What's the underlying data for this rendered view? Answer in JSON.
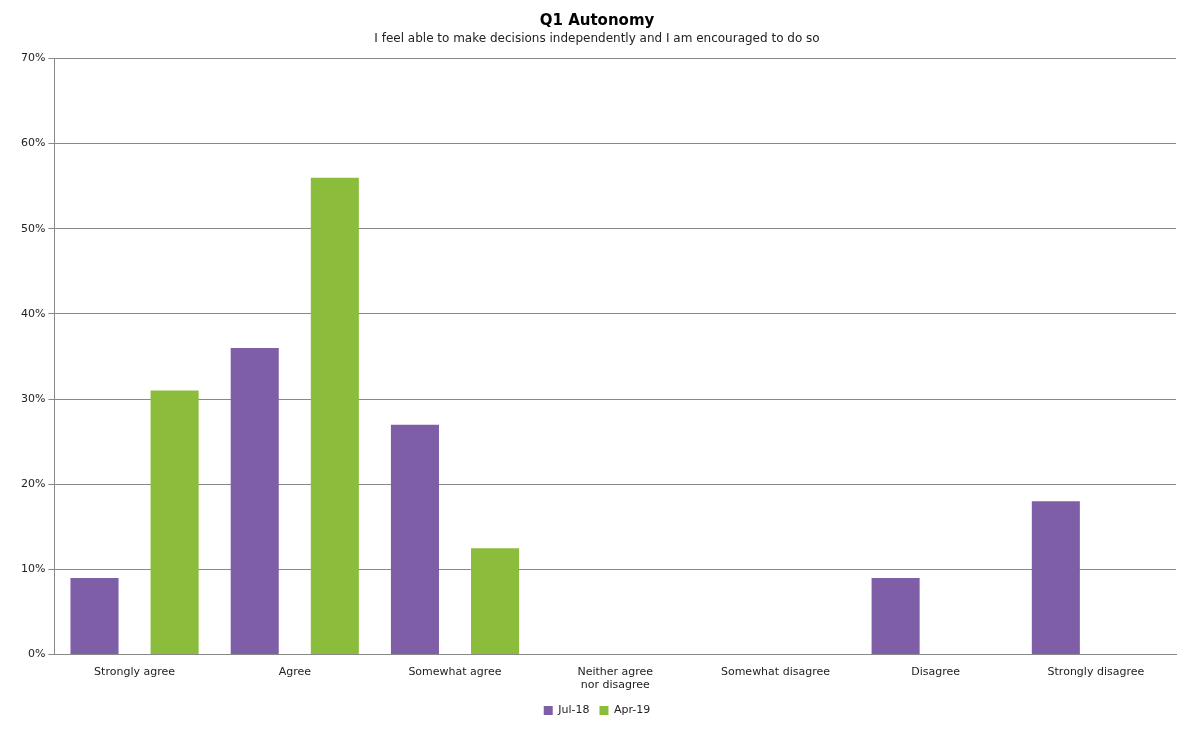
{
  "chart_data": {
    "type": "bar",
    "title": "Q1 Autonomy",
    "subtitle": "I feel able to make decisions independently and I am encouraged to do so",
    "categories": [
      "Strongly agree",
      "Agree",
      "Somewhat agree",
      "Neither agree nor disagree",
      "Somewhat disagree",
      "Disagree",
      "Strongly disagree"
    ],
    "series": [
      {
        "name": "Jul-18",
        "color": "#7f5ea8",
        "values": [
          9,
          36,
          27,
          0,
          0,
          9,
          18
        ]
      },
      {
        "name": "Apr-19",
        "color": "#8cbc3c",
        "values": [
          31,
          56,
          12.5,
          0,
          0,
          0,
          0
        ]
      }
    ],
    "ylim": [
      0,
      70
    ],
    "yticks": [
      {
        "value": 0,
        "label": "0%"
      },
      {
        "value": 10,
        "label": "10%"
      },
      {
        "value": 20,
        "label": "20%"
      },
      {
        "value": 30,
        "label": "30%"
      },
      {
        "value": 40,
        "label": "40%"
      },
      {
        "value": 50,
        "label": "50%"
      },
      {
        "value": 60,
        "label": "60%"
      },
      {
        "value": 70,
        "label": "70%"
      }
    ],
    "grid": "y",
    "legend": "bottom"
  }
}
